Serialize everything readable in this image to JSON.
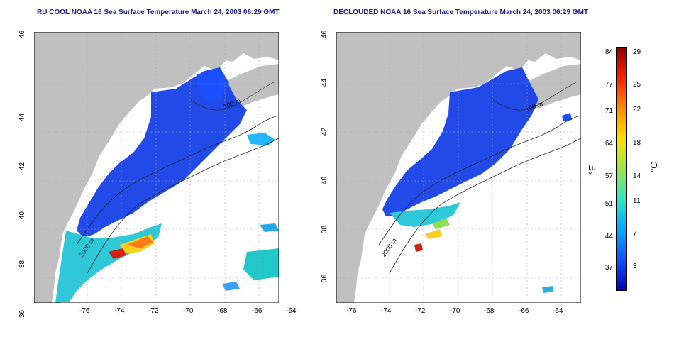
{
  "left_panel": {
    "title": "RU COOL NOAA 16 Sea Surface Temperature March 24, 2003 06:29 GMT",
    "contour_labels": [
      "100 m",
      "2000 m"
    ]
  },
  "right_panel": {
    "title": "DECLOUDED NOAA 16 Sea Surface Temperature March 24, 2003 06:29 GMT",
    "contour_labels": [
      "100 m",
      "2000 m"
    ]
  },
  "axes": {
    "lon_ticks": [
      "-76",
      "-74",
      "-72",
      "-70",
      "-68",
      "-66",
      "-64"
    ],
    "lat_ticks": [
      "36",
      "38",
      "40",
      "42",
      "44",
      "46"
    ]
  },
  "colorbar": {
    "fahrenheit_unit": "°F",
    "celsius_unit": "°C",
    "fahrenheit_ticks": [
      "84",
      "77",
      "71",
      "64",
      "57",
      "51",
      "44",
      "37"
    ],
    "celsius_ticks": [
      "29",
      "25",
      "22",
      "18",
      "14",
      "11",
      "7",
      "3"
    ],
    "colors": [
      "#8b0000",
      "#ff2000",
      "#ff8c00",
      "#ffe000",
      "#9ae64b",
      "#2ee6c8",
      "#00aaff",
      "#1450ff",
      "#0000b4"
    ]
  }
}
